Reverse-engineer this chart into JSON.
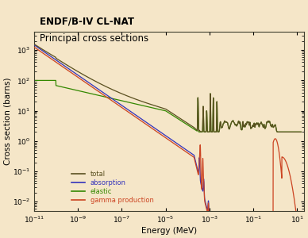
{
  "title_line1": "ENDF/B-IV CL-NAT",
  "title_line2": "Principal cross sections",
  "xlabel": "Energy (MeV)",
  "ylabel": "Cross section (barns)",
  "xmin": 1e-11,
  "xmax": 20.0,
  "ymin": 0.005,
  "ymax": 4000.0,
  "background_color": "#f5e6c8",
  "axes_background": "#f5e6c8",
  "legend_labels": [
    "total",
    "absorption",
    "elastic",
    "gamma production"
  ],
  "legend_colors": [
    "#5a5020",
    "#3333bb",
    "#338800",
    "#cc4422"
  ],
  "line_colors": {
    "total": "#5a5020",
    "absorption": "#3333bb",
    "elastic": "#338800",
    "gamma": "#cc4422"
  }
}
